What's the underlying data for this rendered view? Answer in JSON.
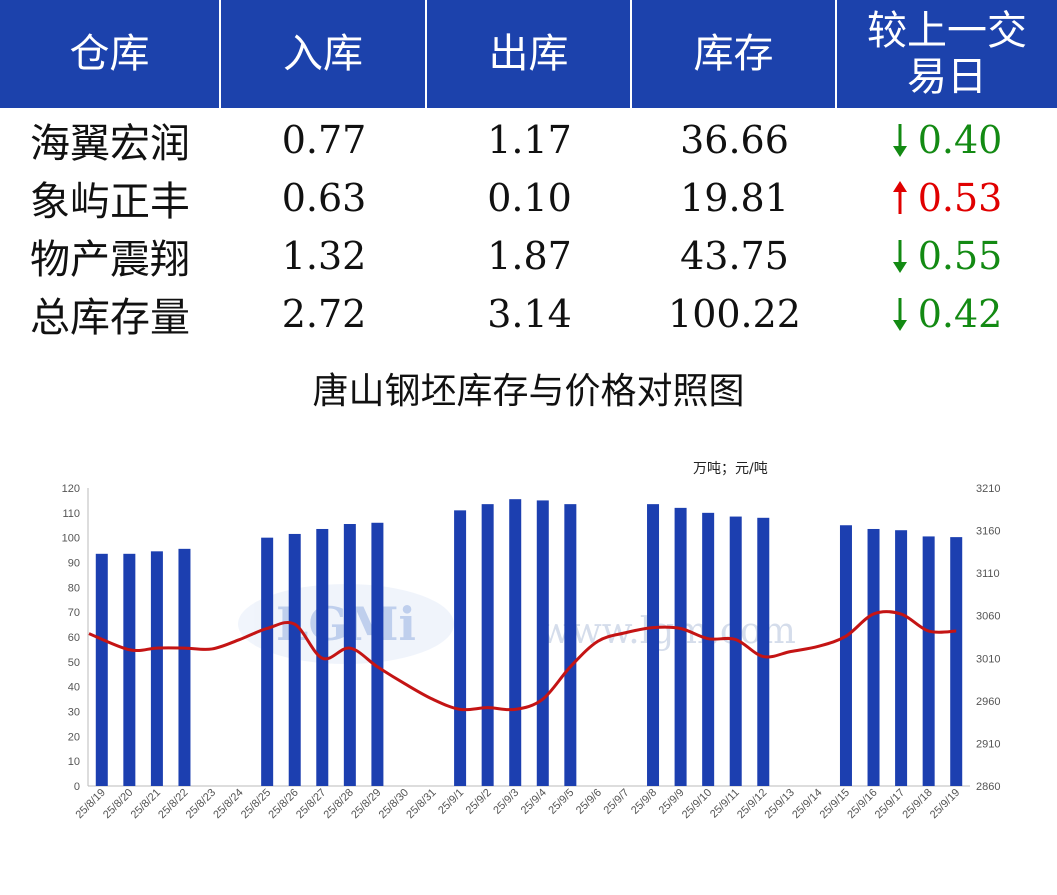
{
  "table": {
    "headers": [
      "仓库",
      "入库",
      "出库",
      "库存",
      "较上一交易日"
    ],
    "rows": [
      {
        "name": "海翼宏润",
        "in": "0.77",
        "out": "1.17",
        "stock": "36.66",
        "direction": "down",
        "change": "0.40"
      },
      {
        "name": "象屿正丰",
        "in": "0.63",
        "out": "0.10",
        "stock": "19.81",
        "direction": "up",
        "change": "0.53"
      },
      {
        "name": "物产震翔",
        "in": "1.32",
        "out": "1.87",
        "stock": "43.75",
        "direction": "down",
        "change": "0.55"
      },
      {
        "name": "总库存量",
        "in": "2.72",
        "out": "3.14",
        "stock": "100.22",
        "direction": "down",
        "change": "0.42"
      }
    ],
    "colors": {
      "header_bg": "#1c42ac",
      "up": "#e00000",
      "down": "#138a13"
    }
  },
  "watermark": {
    "logo_text": "LGMi",
    "url_text": "www.lgm.com"
  },
  "chart_data": {
    "type": "bar+line",
    "title": "唐山钢坯库存与价格对照图",
    "unit_label": "万吨；元/吨",
    "categories": [
      "25/8/19",
      "25/8/20",
      "25/8/21",
      "25/8/22",
      "25/8/23",
      "25/8/24",
      "25/8/25",
      "25/8/26",
      "25/8/27",
      "25/8/28",
      "25/8/29",
      "25/8/30",
      "25/8/31",
      "25/9/1",
      "25/9/2",
      "25/9/3",
      "25/9/4",
      "25/9/5",
      "25/9/6",
      "25/9/7",
      "25/9/8",
      "25/9/9",
      "25/9/10",
      "25/9/11",
      "25/9/12",
      "25/9/13",
      "25/9/14",
      "25/9/15",
      "25/9/16",
      "25/9/17",
      "25/9/18",
      "25/9/19"
    ],
    "bar_values": [
      93.5,
      93.5,
      94.5,
      95.5,
      null,
      null,
      100,
      101.5,
      103.5,
      105.5,
      106,
      null,
      null,
      111,
      113.5,
      115.5,
      115,
      113.5,
      null,
      null,
      113.5,
      112,
      110,
      108.5,
      108,
      null,
      null,
      105,
      103.5,
      103,
      100.5,
      100.22
    ],
    "line_values": [
      3039,
      3020,
      3022,
      3022,
      3021,
      3032,
      3045,
      3050,
      3010,
      3022,
      3000,
      2980,
      2962,
      2950,
      2952,
      2950,
      2962,
      3000,
      3030,
      3040,
      3046,
      3045,
      3033,
      3032,
      3012,
      3018,
      3024,
      3036,
      3062,
      3062,
      3042,
      3042
    ],
    "y_left": {
      "min": 0,
      "max": 120,
      "ticks": [
        0,
        10,
        20,
        30,
        40,
        50,
        60,
        70,
        80,
        90,
        100,
        110,
        120
      ]
    },
    "y_right": {
      "min": 2860,
      "max": 3210,
      "ticks": [
        2860,
        2910,
        2960,
        3010,
        3060,
        3110,
        3160,
        3210
      ]
    },
    "bar_color": "#1c3fb0",
    "line_color": "#c41414",
    "grid": false
  }
}
